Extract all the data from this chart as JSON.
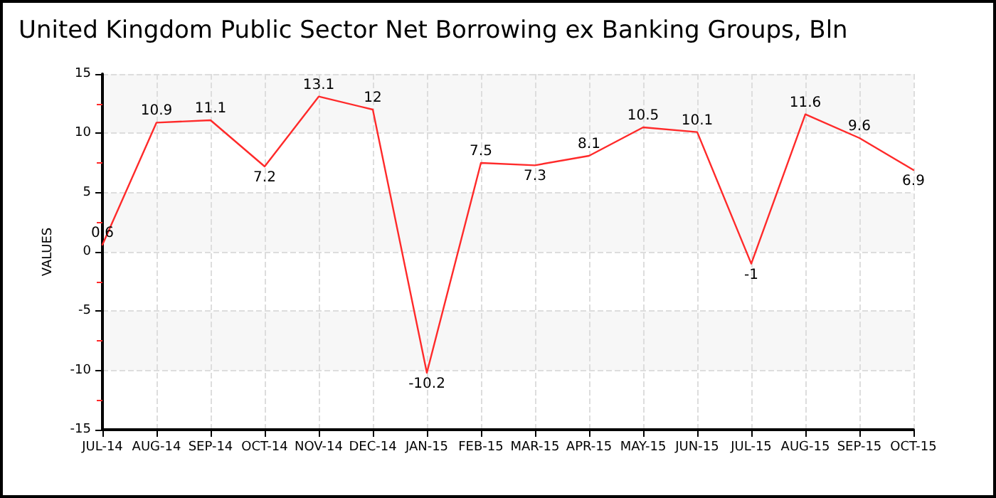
{
  "chart_data": {
    "type": "line",
    "title": "United Kingdom Public Sector Net Borrowing ex Banking Groups, Bln",
    "ylabel": "VALUES",
    "categories": [
      "JUL-14",
      "AUG-14",
      "SEP-14",
      "OCT-14",
      "NOV-14",
      "DEC-14",
      "JAN-15",
      "FEB-15",
      "MAR-15",
      "APR-15",
      "MAY-15",
      "JUN-15",
      "JUL-15",
      "AUG-15",
      "SEP-15",
      "OCT-15"
    ],
    "series": [
      {
        "color": "#ff2a2a",
        "values": [
          0.6,
          10.9,
          11.1,
          7.2,
          13.1,
          12,
          -10.2,
          7.5,
          7.3,
          8.1,
          10.5,
          10.1,
          -1,
          11.6,
          9.6,
          6.9
        ]
      }
    ],
    "ylim": [
      -15,
      15
    ],
    "yticks": [
      -15,
      -10,
      -5,
      0,
      5,
      10,
      15
    ],
    "grid": true,
    "data_labels": true,
    "marker": "none",
    "line_style": "solid"
  }
}
